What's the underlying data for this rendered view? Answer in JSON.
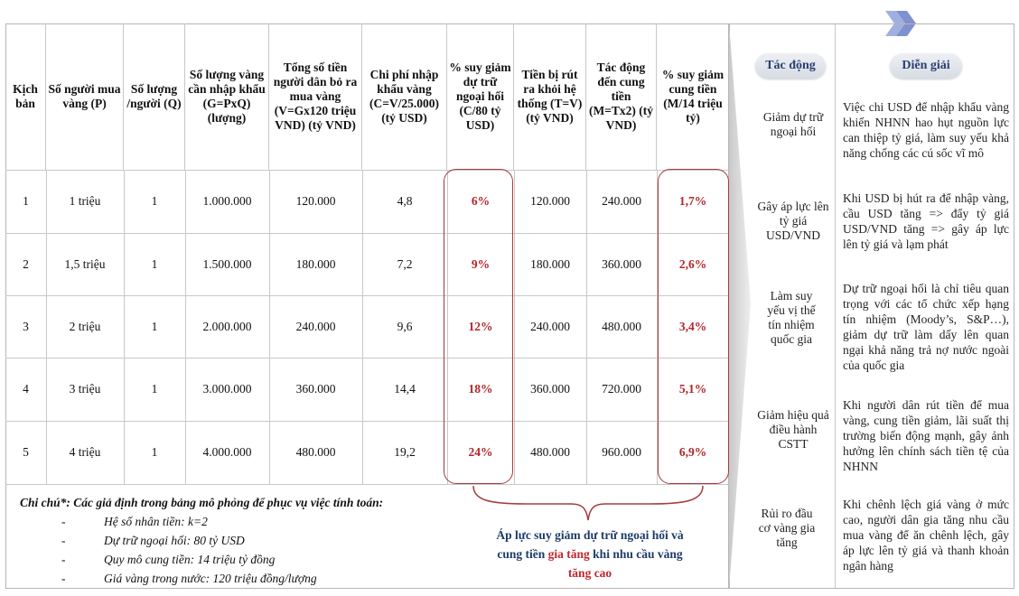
{
  "table": {
    "headers": [
      "Kịch bản",
      "Số người mua vàng (P)",
      "Số lượng /người (Q)",
      "Số lượng vàng cần nhập khẩu (G=PxQ) (lượng)",
      "Tổng số tiền người dân bỏ ra mua vàng (V=Gx120 triệu VND) (tỷ VND)",
      "Chi phí nhập khẩu vàng (C=V/25.000) (tỷ USD)",
      "% suy giảm dự trữ ngoại hối (C/80 tỷ USD)",
      "Tiền bị rút ra khỏi hệ thống (T=V) (tỷ VND)",
      "Tác động đến cung tiền (M=Tx2) (tỷ VND)",
      "% suy giảm cung tiền (M/14 triệu tỷ)"
    ],
    "rows": [
      [
        "1",
        "1 triệu",
        "1",
        "1.000.000",
        "120.000",
        "4,8",
        "6%",
        "120.000",
        "240.000",
        "1,7%"
      ],
      [
        "2",
        "1,5 triệu",
        "1",
        "1.500.000",
        "180.000",
        "7,2",
        "9%",
        "180.000",
        "360.000",
        "2,6%"
      ],
      [
        "3",
        "2 triệu",
        "1",
        "2.000.000",
        "240.000",
        "9,6",
        "12%",
        "240.000",
        "480.000",
        "3,4%"
      ],
      [
        "4",
        "3 triệu",
        "1",
        "3.000.000",
        "360.000",
        "14,4",
        "18%",
        "360.000",
        "720.000",
        "5,1%"
      ],
      [
        "5",
        "4 triệu",
        "1",
        "4.000.000",
        "480.000",
        "19,2",
        "24%",
        "480.000",
        "960.000",
        "6,9%"
      ]
    ]
  },
  "notes": {
    "title": "Chi chú*: Các giả định trong bảng mô phỏng để phục vụ việc tính toán:",
    "items": [
      "Hệ số nhân tiền: k=2",
      "Dự trữ ngoại hối: 80 tỷ USD",
      "Quy mô cung tiền: 14 triệu tỷ đồng",
      "Giá vàng trong nước: 120 triệu đồng/lượng"
    ]
  },
  "callout": {
    "part1": "Áp lực suy giảm dự trữ ngoại hối và cung tiền ",
    "hot1": "gia tăng",
    "part2": " khi nhu cầu vàng ",
    "hot2": "tăng cao"
  },
  "side": {
    "impact_header": "Tác động",
    "explanation_header": "Diễn giải",
    "items": [
      {
        "impact": "Giảm dự trữ ngoại hối",
        "explanation": "Việc chi USD để nhập khẩu vàng khiến NHNN hao hụt nguồn lực can thiệp tỷ giá, làm suy yếu khả năng chống các cú sốc vĩ mô"
      },
      {
        "impact": "Gây áp lực lên tỷ giá USD/VND",
        "explanation": "Khi USD bị hút ra để nhập vàng, cầu USD tăng => đẩy tỷ giá USD/VND tăng => gây áp lực lên tỷ giá và lạm phát"
      },
      {
        "impact": "Làm suy yếu vị thế tín nhiệm quốc gia",
        "explanation": "Dự trữ ngoại hối là chỉ tiêu quan trọng với các tổ chức xếp hạng tín nhiệm (Moody’s, S&P…), giảm dự trữ làm dấy lên quan ngại khả năng trả nợ nước ngoài của quốc gia"
      },
      {
        "impact": "Giảm hiệu quả điều hành CSTT",
        "explanation": "Khi người dân rút tiền để mua vàng, cung tiền giảm, lãi suất thị trường biến động mạnh, gây ảnh hưởng lên chính sách tiền tệ của NHNN"
      },
      {
        "impact": "Rủi ro đầu cơ vàng gia tăng",
        "explanation": "Khi chênh lệch giá vàng ở mức cao, người dân gia tăng nhu cầu mua vàng để ăn chênh lệch, gây áp lực lên tỷ giá và thanh khoản ngân hàng"
      }
    ]
  },
  "colors": {
    "accent_red": "#b3262b",
    "header_blue": "#2a3f73",
    "chevron": "#8ea0d6"
  },
  "icons": [
    "double-chevron-right-icon"
  ]
}
